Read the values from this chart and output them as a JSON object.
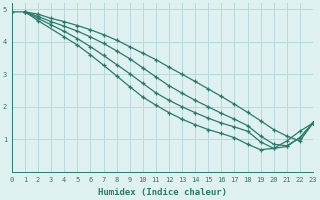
{
  "xlabel": "Humidex (Indice chaleur)",
  "ylabel": "",
  "bg_color": "#dff0f0",
  "grid_color": "#b8dada",
  "line_color": "#2a7a6a",
  "marker": "+",
  "xlim": [
    0,
    23
  ],
  "ylim": [
    0,
    5.2
  ],
  "xticks": [
    0,
    1,
    2,
    3,
    4,
    5,
    6,
    7,
    8,
    9,
    10,
    11,
    12,
    13,
    14,
    15,
    16,
    17,
    18,
    19,
    20,
    21,
    22,
    23
  ],
  "yticks": [
    1,
    2,
    3,
    4,
    5
  ],
  "lines": [
    {
      "x": [
        0,
        1,
        2,
        3,
        4,
        5,
        6,
        7,
        8,
        9,
        10,
        11,
        12,
        13,
        14,
        15,
        16,
        17,
        18,
        19,
        20,
        21,
        22,
        23
      ],
      "y": [
        4.92,
        4.92,
        4.85,
        4.72,
        4.62,
        4.5,
        4.37,
        4.22,
        4.05,
        3.85,
        3.65,
        3.45,
        3.22,
        3.0,
        2.78,
        2.55,
        2.32,
        2.08,
        1.83,
        1.57,
        1.3,
        1.1,
        0.95,
        1.5
      ]
    },
    {
      "x": [
        1,
        2,
        3,
        4,
        5,
        6,
        7,
        8,
        9,
        10,
        11,
        12,
        13,
        14,
        15,
        16,
        17,
        18,
        19,
        20,
        21,
        22,
        23
      ],
      "y": [
        4.92,
        4.78,
        4.62,
        4.48,
        4.33,
        4.15,
        3.95,
        3.72,
        3.48,
        3.2,
        2.92,
        2.65,
        2.42,
        2.2,
        2.0,
        1.8,
        1.62,
        1.42,
        1.1,
        0.85,
        0.8,
        1.05,
        1.5
      ]
    },
    {
      "x": [
        1,
        2,
        3,
        4,
        5,
        6,
        7,
        8,
        9,
        10,
        11,
        12,
        13,
        14,
        15,
        16,
        17,
        18,
        19,
        20,
        21,
        22,
        23
      ],
      "y": [
        4.92,
        4.72,
        4.52,
        4.32,
        4.1,
        3.85,
        3.58,
        3.3,
        3.02,
        2.72,
        2.43,
        2.2,
        2.0,
        1.82,
        1.65,
        1.5,
        1.38,
        1.25,
        0.92,
        0.72,
        0.78,
        1.05,
        1.5
      ]
    },
    {
      "x": [
        1,
        2,
        4,
        5,
        6,
        7,
        8,
        9,
        10,
        11,
        12,
        13,
        14,
        15,
        16,
        17,
        18,
        19,
        20,
        21,
        22,
        23
      ],
      "y": [
        4.92,
        4.65,
        4.15,
        3.9,
        3.6,
        3.28,
        2.95,
        2.62,
        2.3,
        2.05,
        1.82,
        1.62,
        1.45,
        1.3,
        1.18,
        1.05,
        0.85,
        0.68,
        0.72,
        0.95,
        1.25,
        1.5
      ]
    }
  ]
}
